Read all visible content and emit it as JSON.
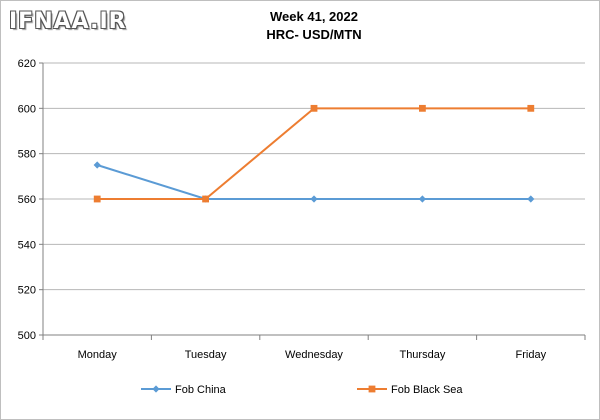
{
  "logo": {
    "text": "IFNAA.IR"
  },
  "chart_data": {
    "type": "line",
    "title": "Week 41, 2022",
    "subtitle": "HRC- USD/MTN",
    "categories": [
      "Monday",
      "Tuesday",
      "Wednesday",
      "Thursday",
      "Friday"
    ],
    "ylim": [
      500,
      620
    ],
    "yticks": [
      500,
      520,
      540,
      560,
      580,
      600,
      620
    ],
    "grid": true,
    "legend_position": "bottom",
    "series": [
      {
        "name": "Fob China",
        "values": [
          575,
          560,
          560,
          560,
          560
        ],
        "color": "#5b9bd5",
        "marker": "diamond"
      },
      {
        "name": "Fob Black Sea",
        "values": [
          560,
          560,
          600,
          600,
          600
        ],
        "color": "#ed7d31",
        "marker": "square"
      }
    ]
  }
}
